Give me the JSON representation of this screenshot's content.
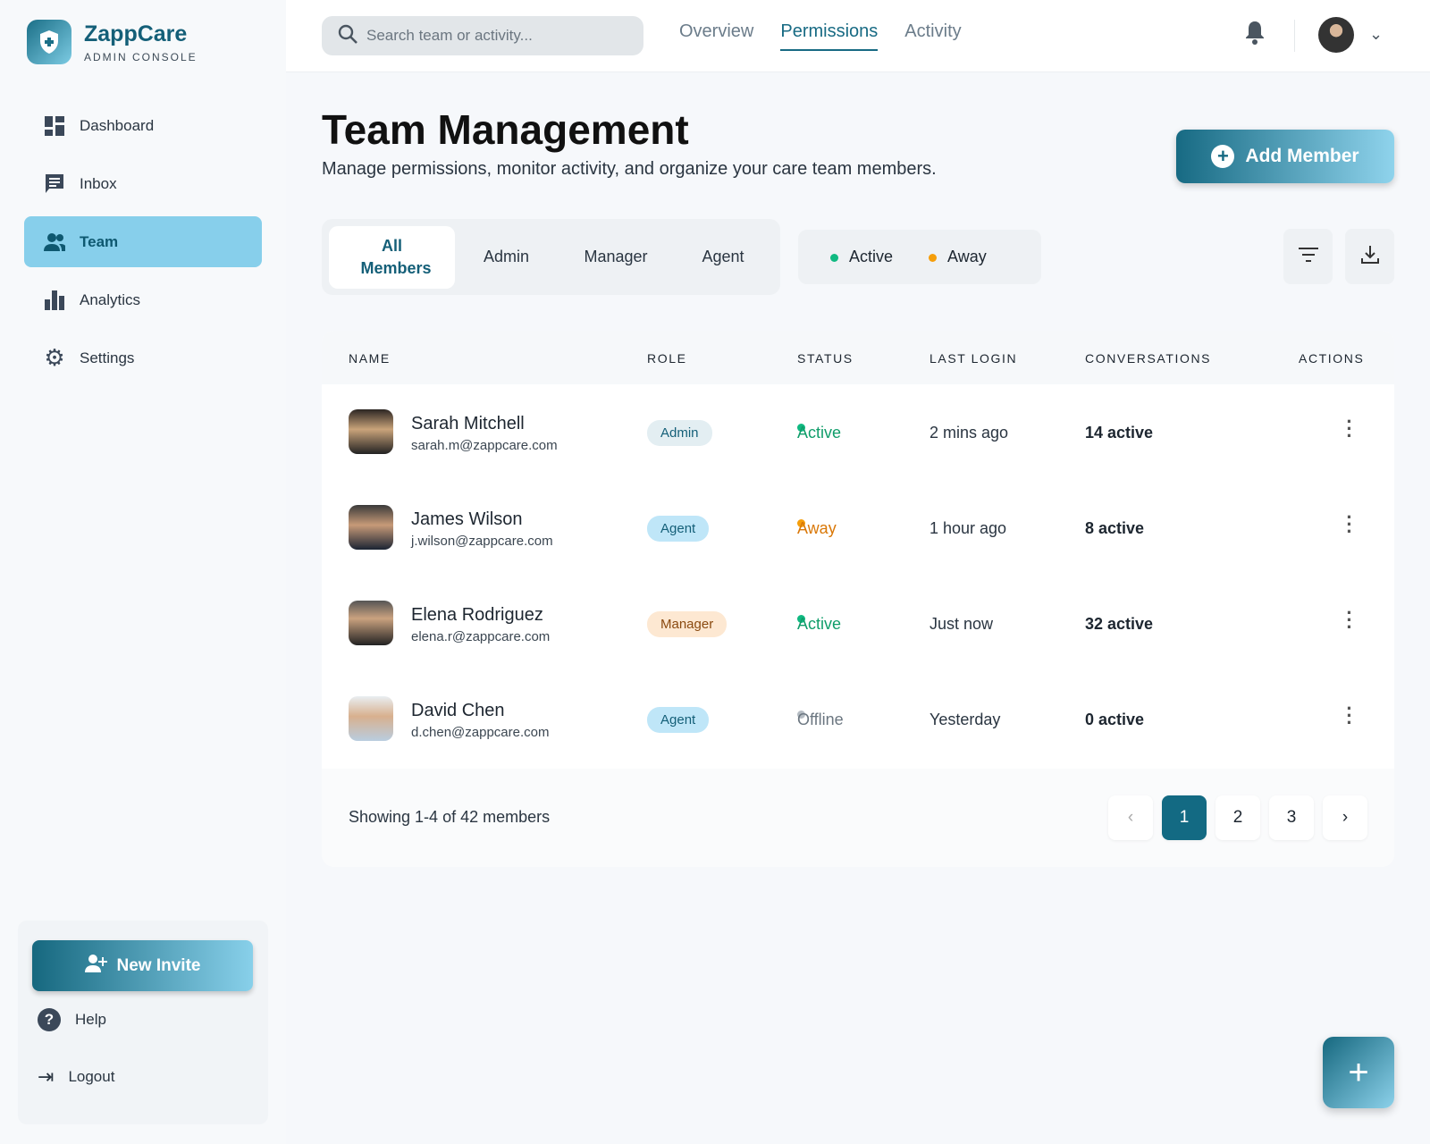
{
  "brand": {
    "name": "ZappCare",
    "subtitle": "ADMIN CONSOLE"
  },
  "sidebar": {
    "items": [
      {
        "label": "Dashboard",
        "icon": "dashboard-icon"
      },
      {
        "label": "Inbox",
        "icon": "inbox-icon"
      },
      {
        "label": "Team",
        "icon": "team-icon",
        "active": true
      },
      {
        "label": "Analytics",
        "icon": "analytics-icon"
      },
      {
        "label": "Settings",
        "icon": "gear-icon"
      }
    ],
    "new_invite": "New Invite",
    "help": "Help",
    "logout": "Logout"
  },
  "topbar": {
    "search_placeholder": "Search team or activity...",
    "tabs": [
      "Overview",
      "Permissions",
      "Activity"
    ],
    "active_tab": "Permissions"
  },
  "header": {
    "title": "Team Management",
    "description": "Manage permissions, monitor activity, and organize your care team members.",
    "add_member": "Add Member"
  },
  "filters": {
    "roles": [
      "All Members",
      "Admin",
      "Manager",
      "Agent"
    ],
    "active_role": "All Members",
    "statuses": [
      {
        "label": "Active",
        "color": "#10b981"
      },
      {
        "label": "Away",
        "color": "#f59e0b"
      }
    ]
  },
  "table": {
    "columns": [
      "NAME",
      "ROLE",
      "STATUS",
      "LAST LOGIN",
      "CONVERSATIONS",
      "ACTIONS"
    ],
    "rows": [
      {
        "name": "Sarah Mitchell",
        "email": "sarah.m@zappcare.com",
        "role": "Admin",
        "status": "Active",
        "last_login": "2 mins ago",
        "conversations": "14 active"
      },
      {
        "name": "James Wilson",
        "email": "j.wilson@zappcare.com",
        "role": "Agent",
        "status": "Away",
        "last_login": "1 hour ago",
        "conversations": "8 active"
      },
      {
        "name": "Elena Rodriguez",
        "email": "elena.r@zappcare.com",
        "role": "Manager",
        "status": "Active",
        "last_login": "Just now",
        "conversations": "32 active"
      },
      {
        "name": "David Chen",
        "email": "d.chen@zappcare.com",
        "role": "Agent",
        "status": "Offline",
        "last_login": "Yesterday",
        "conversations": "0 active"
      }
    ],
    "showing": "Showing 1-4 of 42 members",
    "pages": [
      "1",
      "2",
      "3"
    ],
    "current_page": "1"
  },
  "colors": {
    "accent": "#176a83",
    "active": "#10b981",
    "away": "#f59e0b",
    "offline": "#9aa3ab"
  }
}
